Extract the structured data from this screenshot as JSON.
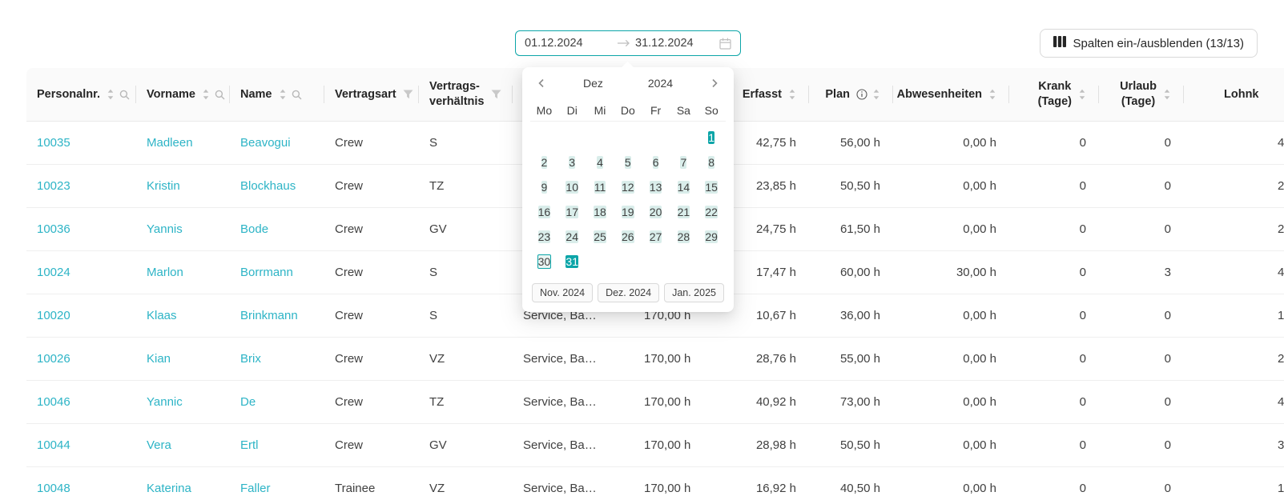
{
  "colors": {
    "accent_teal": "#0ca5a8",
    "range_teal": "#d9edea",
    "link_teal": "#2db4c6"
  },
  "toolbar": {
    "date_range_start": "01.12.2024",
    "date_range_end": "31.12.2024",
    "columns_button_label": "Spalten ein-/ausblenden (13/13)"
  },
  "calendar": {
    "month_label": "Dez",
    "year_label": "2024",
    "weekdays": [
      "Mo",
      "Di",
      "Mi",
      "Do",
      "Fr",
      "Sa",
      "So"
    ],
    "weeks": [
      [
        null,
        null,
        null,
        null,
        null,
        null,
        1
      ],
      [
        2,
        3,
        4,
        5,
        6,
        7,
        8
      ],
      [
        9,
        10,
        11,
        12,
        13,
        14,
        15
      ],
      [
        16,
        17,
        18,
        19,
        20,
        21,
        22
      ],
      [
        23,
        24,
        25,
        26,
        27,
        28,
        29
      ],
      [
        30,
        31,
        null,
        null,
        null,
        null,
        null
      ]
    ],
    "range_start_day": 1,
    "range_end_day": 31,
    "today_day": 30,
    "presets": [
      "Nov. 2024",
      "Dez. 2024",
      "Jan. 2025"
    ]
  },
  "table": {
    "columns": [
      {
        "key": "personalnr",
        "label": "Personalnr.",
        "icons": [
          "sort",
          "search"
        ]
      },
      {
        "key": "vorname",
        "label": "Vorname",
        "icons": [
          "sort",
          "search"
        ]
      },
      {
        "key": "name",
        "label": "Name",
        "icons": [
          "sort",
          "search"
        ]
      },
      {
        "key": "vertragsart",
        "label": "Vertragsart",
        "icons": [
          "filter"
        ]
      },
      {
        "key": "vertragsverhaeltnis",
        "label": "Vertrags-",
        "label2": "verhältnis",
        "icons": [
          "filter"
        ]
      },
      {
        "key": "col6",
        "label": "",
        "icons": []
      },
      {
        "key": "col7",
        "label": "",
        "icons": []
      },
      {
        "key": "erfasst",
        "label": "Erfasst",
        "icons": [
          "sort"
        ]
      },
      {
        "key": "plan",
        "label": "Plan",
        "icons": [
          "info",
          "sort"
        ]
      },
      {
        "key": "abwesenheiten",
        "label": "Abwesenheiten",
        "icons": [
          "sort"
        ]
      },
      {
        "key": "krank-tage",
        "label": "Krank",
        "label2": "(Tage)",
        "icons": [
          "sort"
        ]
      },
      {
        "key": "urlaub-tage",
        "label": "Urlaub",
        "label2": "(Tage)",
        "icons": [
          "sort"
        ]
      },
      {
        "key": "lohnkosten",
        "label": "Lohnk",
        "icons": []
      }
    ],
    "rows": [
      [
        "10035",
        "Madleen",
        "Beavogui",
        "Crew",
        "S",
        "",
        "",
        "42,75 h",
        "56,00 h",
        "0,00 h",
        "0",
        "0",
        "4"
      ],
      [
        "10023",
        "Kristin",
        "Blockhaus",
        "Crew",
        "TZ",
        "",
        "",
        "23,85 h",
        "50,50 h",
        "0,00 h",
        "0",
        "0",
        "2"
      ],
      [
        "10036",
        "Yannis",
        "Bode",
        "Crew",
        "GV",
        "",
        "",
        "24,75 h",
        "61,50 h",
        "0,00 h",
        "0",
        "0",
        "2"
      ],
      [
        "10024",
        "Marlon",
        "Borrmann",
        "Crew",
        "S",
        "",
        "",
        "17,47 h",
        "60,00 h",
        "30,00 h",
        "0",
        "3",
        "4"
      ],
      [
        "10020",
        "Klaas",
        "Brinkmann",
        "Crew",
        "S",
        "Service, Ba…",
        "170,00 h",
        "10,67 h",
        "36,00 h",
        "0,00 h",
        "0",
        "0",
        "1"
      ],
      [
        "10026",
        "Kian",
        "Brix",
        "Crew",
        "VZ",
        "Service, Ba…",
        "170,00 h",
        "28,76 h",
        "55,00 h",
        "0,00 h",
        "0",
        "0",
        "2"
      ],
      [
        "10046",
        "Yannic",
        "De",
        "Crew",
        "TZ",
        "Service, Ba…",
        "170,00 h",
        "40,92 h",
        "73,00 h",
        "0,00 h",
        "0",
        "0",
        "4"
      ],
      [
        "10044",
        "Vera",
        "Ertl",
        "Crew",
        "GV",
        "Service, Ba…",
        "170,00 h",
        "28,98 h",
        "50,50 h",
        "0,00 h",
        "0",
        "0",
        "3"
      ],
      [
        "10048",
        "Katerina",
        "Faller",
        "Trainee",
        "VZ",
        "Service, Ba…",
        "170,00 h",
        "16,92 h",
        "40,50 h",
        "0,00 h",
        "0",
        "0",
        "1"
      ]
    ]
  }
}
